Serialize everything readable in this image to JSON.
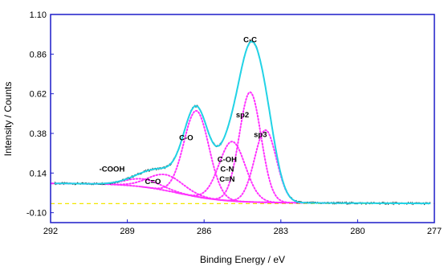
{
  "chart_data": {
    "type": "line",
    "xlabel": "Binding Energy / eV",
    "ylabel": "Intensity / Counts",
    "x_reversed": true,
    "xlim": [
      292,
      277
    ],
    "ylim": [
      -0.16,
      1.1
    ],
    "x_ticks": [
      292,
      289,
      286,
      283,
      280,
      277
    ],
    "x_tick_labels": [
      "292",
      "289",
      "286",
      "283",
      "280",
      "277"
    ],
    "y_ticks": [
      -0.1,
      0.14,
      0.38,
      0.62,
      0.86,
      1.1
    ],
    "y_tick_labels": [
      "-0.10",
      "0.14",
      "0.38",
      "0.62",
      "0.86",
      "1.10"
    ],
    "grid": false,
    "frame_color": "#1c1cc8",
    "colors": {
      "experimental": "#222222",
      "envelope": "#22d3e6",
      "components": "#ff33ff",
      "baseline": "#f2e600"
    },
    "baseline_y": -0.045,
    "background": {
      "x_start": 292,
      "y_start": 0.078,
      "x_step": 287.0,
      "y_low": 0.078,
      "y_high": -0.035
    },
    "components": [
      {
        "label": "-COOH",
        "center": 288.4,
        "height": 0.048,
        "fwhm": 1.6
      },
      {
        "label": "C=O",
        "center": 287.5,
        "height": 0.096,
        "fwhm": 1.6
      },
      {
        "label": "C-O",
        "center": 286.3,
        "height": 0.52,
        "fwhm": 1.15
      },
      {
        "label": "C-OH C-N C=N",
        "center": 284.9,
        "height": 0.36,
        "fwhm": 1.2
      },
      {
        "label": "sp2",
        "center": 284.2,
        "height": 0.665,
        "fwhm": 1.0
      },
      {
        "label": "sp3",
        "center": 283.6,
        "height": 0.438,
        "fwhm": 1.0
      }
    ],
    "annotations": [
      {
        "text": "C-C",
        "x": 284.2,
        "y": 0.933
      },
      {
        "text": "sp2",
        "x": 284.5,
        "y": 0.478
      },
      {
        "text": "sp3",
        "x": 283.8,
        "y": 0.358
      },
      {
        "text": "C-O",
        "x": 286.7,
        "y": 0.338
      },
      {
        "text": "C-OH",
        "x": 285.1,
        "y": 0.208
      },
      {
        "text": "C-N",
        "x": 285.1,
        "y": 0.148
      },
      {
        "text": "C=N",
        "x": 285.1,
        "y": 0.088
      },
      {
        "text": "-COOH",
        "x": 289.6,
        "y": 0.148
      },
      {
        "text": "C=O",
        "x": 288.0,
        "y": 0.073
      }
    ]
  }
}
